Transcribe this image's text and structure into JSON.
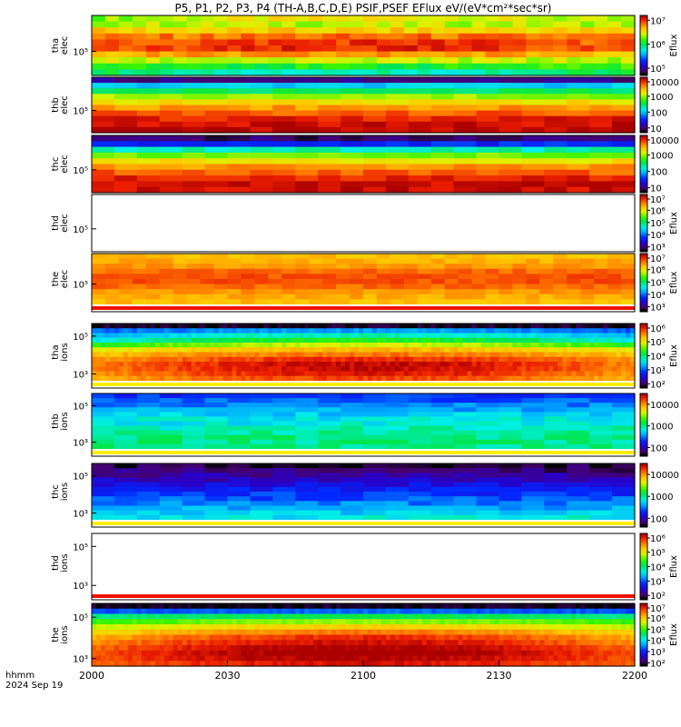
{
  "chart_data": {
    "type": "heatmap",
    "title": "P5, P1, P2, P3, P4 (TH-A,B,C,D,E) PSIF,PSEF EFlux eV/(eV*cm²*sec*sr)",
    "x_ticks": [
      "2000",
      "2030",
      "2100",
      "2130",
      "2200"
    ],
    "corner_label": [
      "hhmm",
      "2024 Sep 19"
    ],
    "panels": [
      {
        "ylabel": [
          "tha",
          "elec"
        ],
        "y_ticks": [
          "10⁵"
        ],
        "cbar_label": "Eflux",
        "cbar_ticks": [
          "10⁷",
          "10⁶",
          "10⁵"
        ],
        "cbar_log_range": [
          4.7,
          7.2
        ],
        "cbar_tick_exp": [
          7,
          6,
          5
        ],
        "n_cols": 40,
        "n_rows": 10,
        "banner": "none",
        "profile": [
          6.3,
          6.4,
          6.6,
          6.8,
          6.9,
          6.9,
          6.7,
          6.4,
          6.2,
          6.0
        ],
        "time_drift": [
          0.2,
          0.0,
          0.0,
          0.05,
          0.1,
          0.1,
          0.05,
          0.0,
          -0.1,
          -0.15
        ]
      },
      {
        "ylabel": [
          "thb",
          "elec"
        ],
        "y_ticks": [
          "10⁵"
        ],
        "cbar_label": "",
        "cbar_ticks": [
          "10000",
          "1000",
          "100",
          "10"
        ],
        "cbar_log_range": [
          0.7,
          4.2
        ],
        "cbar_tick_exp": [
          4,
          3,
          2,
          1
        ],
        "n_cols": 24,
        "n_rows": 10,
        "banner": "none",
        "profile": [
          1.0,
          2.0,
          2.5,
          3.0,
          3.3,
          3.6,
          3.8,
          4.0,
          4.1,
          4.15
        ],
        "time_drift": [
          0.0,
          0.0,
          0.0,
          0.0,
          0.0,
          0.0,
          0.0,
          0.0,
          0.0,
          0.0
        ]
      },
      {
        "ylabel": [
          "thc",
          "elec"
        ],
        "y_ticks": [
          "10⁵"
        ],
        "cbar_label": "",
        "cbar_ticks": [
          "10000",
          "1000",
          "100",
          "10"
        ],
        "cbar_log_range": [
          0.7,
          4.2
        ],
        "cbar_tick_exp": [
          4,
          3,
          2,
          1
        ],
        "n_cols": 24,
        "n_rows": 10,
        "banner": "none",
        "profile": [
          0.9,
          1.5,
          2.3,
          2.9,
          3.3,
          3.6,
          3.8,
          4.0,
          4.1,
          4.1
        ],
        "time_drift": [
          0.0,
          0.0,
          0.0,
          0.0,
          0.0,
          0.0,
          0.0,
          0.0,
          0.0,
          0.0
        ]
      },
      {
        "ylabel": [
          "thd",
          "elec"
        ],
        "y_ticks": [
          "10⁵"
        ],
        "cbar_label": "Eflux",
        "cbar_ticks": [
          "10⁷",
          "10⁶",
          "10⁵",
          "10⁴",
          "10³"
        ],
        "cbar_log_range": [
          2.6,
          7.3
        ],
        "cbar_tick_exp": [
          7,
          6,
          5,
          4,
          3
        ],
        "n_cols": 0,
        "n_rows": 0,
        "banner": "none",
        "profile": [],
        "time_drift": []
      },
      {
        "ylabel": [
          "the",
          "elec"
        ],
        "y_ticks": [
          "10⁵"
        ],
        "cbar_label": "Eflux",
        "cbar_ticks": [
          "10⁷",
          "10⁶",
          "10⁵",
          "10⁴",
          "10³"
        ],
        "cbar_log_range": [
          2.6,
          7.3
        ],
        "cbar_tick_exp": [
          7,
          6,
          5,
          4,
          3
        ],
        "n_cols": 40,
        "n_rows": 10,
        "banner": "bottom",
        "profile": [
          6.3,
          6.4,
          6.5,
          6.7,
          6.8,
          6.8,
          6.7,
          6.5,
          6.4,
          6.3
        ],
        "time_drift": [
          0.0,
          0.0,
          0.0,
          0.0,
          0.0,
          0.0,
          0.0,
          0.0,
          0.0,
          0.0
        ]
      },
      {
        "ylabel": [
          "tha",
          "ions"
        ],
        "y_ticks": [
          "10⁵",
          "10³"
        ],
        "cbar_label": "Eflux",
        "cbar_ticks": [
          "10⁶",
          "10⁵",
          "10⁴",
          "10³",
          "10²"
        ],
        "cbar_log_range": [
          1.7,
          6.3
        ],
        "cbar_tick_exp": [
          6,
          5,
          4,
          3,
          2
        ],
        "n_cols": 120,
        "n_rows": 12,
        "banner": "bottom",
        "profile": [
          1.8,
          3.0,
          3.3,
          3.6,
          4.3,
          5.0,
          5.3,
          5.5,
          5.6,
          5.6,
          5.5,
          5.4
        ],
        "time_drift": [
          0.0,
          0.2,
          0.4,
          0.6,
          0.5,
          0.3,
          0.3,
          0.4,
          0.5,
          0.5,
          0.5,
          0.4
        ]
      },
      {
        "ylabel": [
          "thb",
          "ions"
        ],
        "y_ticks": [
          "10⁵",
          "10³"
        ],
        "cbar_label": "",
        "cbar_ticks": [
          "10000",
          "1000",
          "100"
        ],
        "cbar_log_range": [
          1.6,
          4.5
        ],
        "cbar_tick_exp": [
          4,
          3,
          2
        ],
        "n_cols": 24,
        "n_rows": 12,
        "banner": "bottom",
        "profile": [
          2.3,
          2.4,
          2.5,
          2.6,
          2.7,
          2.8,
          2.8,
          2.9,
          2.95,
          3.0,
          3.0,
          3.0
        ],
        "time_drift": [
          0.0,
          0.0,
          0.0,
          0.0,
          0.0,
          0.0,
          0.0,
          0.0,
          0.0,
          0.0,
          0.0,
          0.0
        ]
      },
      {
        "ylabel": [
          "thc",
          "ions"
        ],
        "y_ticks": [
          "10⁵",
          "10³"
        ],
        "cbar_label": "",
        "cbar_ticks": [
          "10000",
          "1000",
          "100"
        ],
        "cbar_log_range": [
          1.6,
          4.5
        ],
        "cbar_tick_exp": [
          4,
          3,
          2
        ],
        "n_cols": 24,
        "n_rows": 12,
        "banner": "bottom",
        "profile": [
          1.7,
          1.8,
          1.9,
          2.0,
          2.1,
          2.2,
          2.3,
          2.4,
          2.5,
          2.6,
          2.7,
          2.8
        ],
        "time_drift": [
          0.0,
          0.0,
          0.0,
          0.0,
          0.0,
          0.0,
          0.0,
          0.0,
          0.0,
          0.0,
          0.0,
          0.0
        ]
      },
      {
        "ylabel": [
          "thd",
          "ions"
        ],
        "y_ticks": [
          "10⁵",
          "10³"
        ],
        "cbar_label": "Eflux",
        "cbar_ticks": [
          "10⁶",
          "10⁵",
          "10⁴",
          "10³",
          "10²"
        ],
        "cbar_log_range": [
          1.7,
          6.3
        ],
        "cbar_tick_exp": [
          6,
          5,
          4,
          3,
          2
        ],
        "n_cols": 0,
        "n_rows": 0,
        "banner": "bottom",
        "profile": [],
        "time_drift": []
      },
      {
        "ylabel": [
          "the",
          "ions"
        ],
        "y_ticks": [
          "10⁵",
          "10³"
        ],
        "cbar_label": "Eflux",
        "cbar_ticks": [
          "10⁷",
          "10⁶",
          "10⁵",
          "10⁴",
          "10³",
          "10²"
        ],
        "cbar_log_range": [
          1.7,
          7.3
        ],
        "cbar_tick_exp": [
          7,
          6,
          5,
          4,
          3,
          2
        ],
        "n_cols": 120,
        "n_rows": 12,
        "banner": "none",
        "profile": [
          1.8,
          3.2,
          4.4,
          5.0,
          5.5,
          5.9,
          6.2,
          6.4,
          6.6,
          6.7,
          6.7,
          6.6
        ],
        "time_drift": [
          0.0,
          0.1,
          0.2,
          0.3,
          0.4,
          0.5,
          0.6,
          0.6,
          0.6,
          0.6,
          0.5,
          0.4
        ]
      }
    ]
  }
}
